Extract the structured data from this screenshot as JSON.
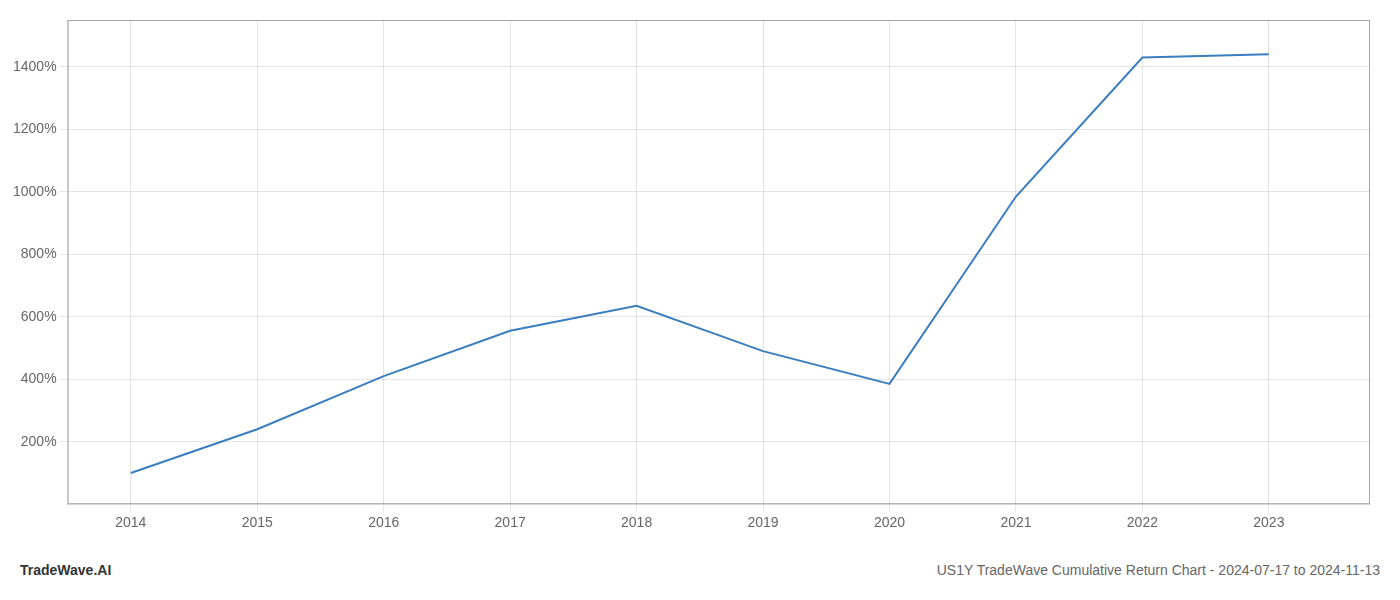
{
  "chart_data": {
    "type": "line",
    "title": "US1Y TradeWave Cumulative Return Chart - 2024-07-17 to 2024-11-13",
    "annotations": [
      "TradeWave.AI"
    ],
    "x": [
      2014,
      2015,
      2016,
      2017,
      2018,
      2019,
      2020,
      2021,
      2022,
      2023
    ],
    "values": [
      100,
      240,
      410,
      555,
      635,
      490,
      385,
      985,
      1430,
      1440
    ],
    "color": "#3a7ebf",
    "xlim": [
      2013.5,
      2023.8
    ],
    "ylim": [
      0,
      1550
    ],
    "xticks": [
      2014,
      2015,
      2016,
      2017,
      2018,
      2019,
      2020,
      2021,
      2022,
      2023
    ],
    "yticks": [
      {
        "value": 200,
        "label": "200%"
      },
      {
        "value": 400,
        "label": "400%"
      },
      {
        "value": 600,
        "label": "600%"
      },
      {
        "value": 800,
        "label": "800%"
      },
      {
        "value": 1000,
        "label": "1000%"
      },
      {
        "value": 1200,
        "label": "1200%"
      },
      {
        "value": 1400,
        "label": "1400%"
      }
    ],
    "grid": true
  }
}
